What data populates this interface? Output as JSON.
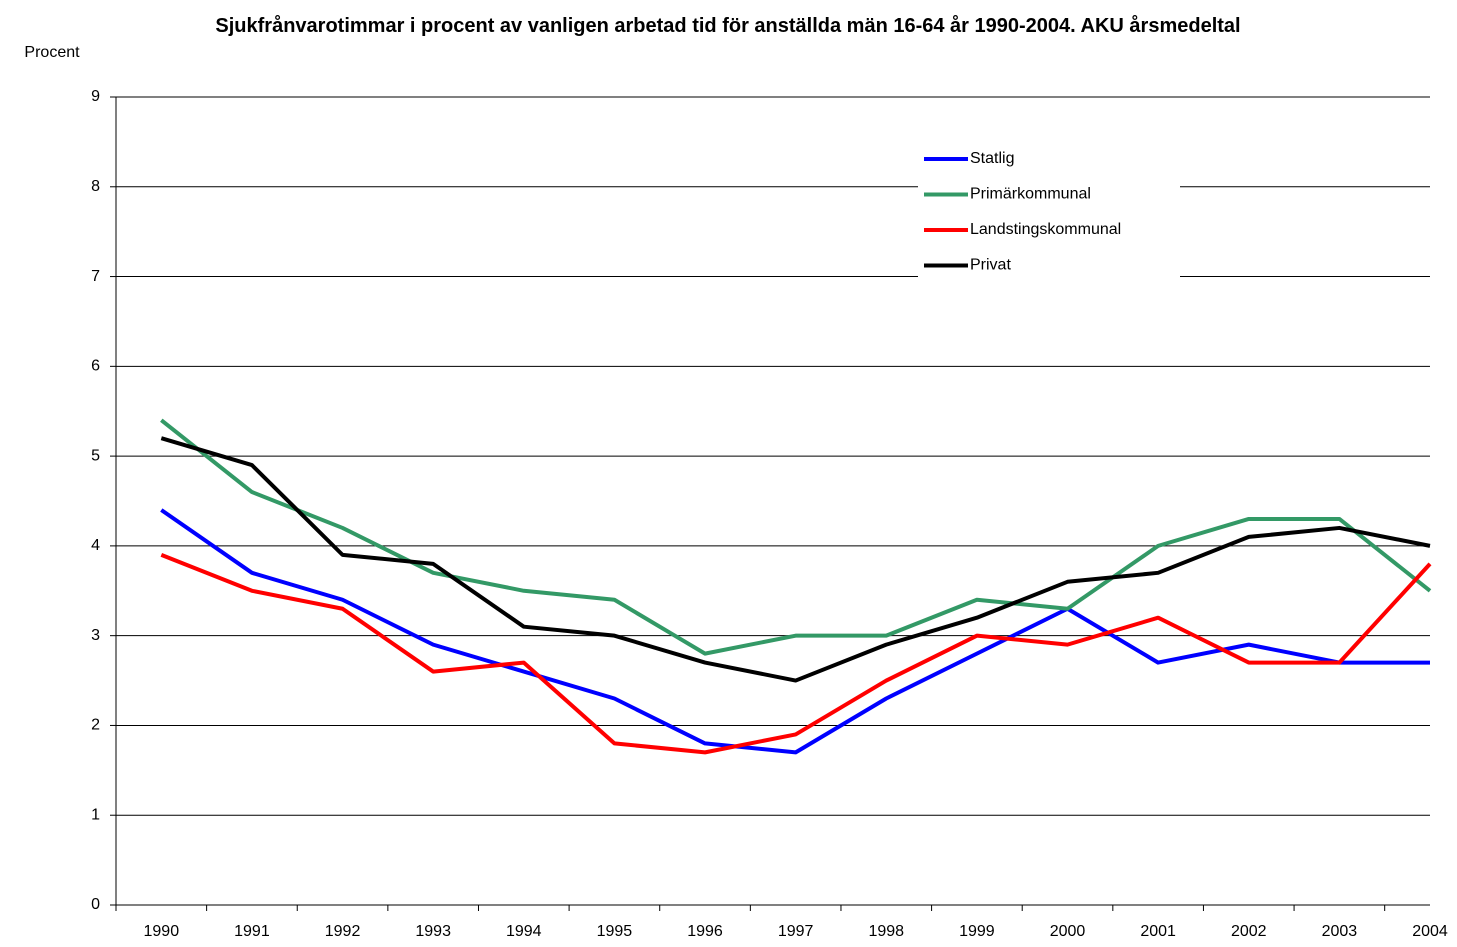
{
  "chart_data": {
    "type": "line",
    "title": "Sjukfrånvarotimmar i procent av vanligen arbetad tid för anställda män 16-64 år 1990-2004. AKU årsmedeltal",
    "y_label": "Procent",
    "categories": [
      "1990",
      "1991",
      "1992",
      "1993",
      "1994",
      "1995",
      "1996",
      "1997",
      "1998",
      "1999",
      "2000",
      "2001",
      "2002",
      "2003",
      "2004"
    ],
    "series": [
      {
        "name": "Statlig",
        "color": "#0000ff",
        "values": [
          4.4,
          3.7,
          3.4,
          2.9,
          2.6,
          2.3,
          1.8,
          1.7,
          2.3,
          2.8,
          3.3,
          2.7,
          2.9,
          2.7,
          2.7
        ]
      },
      {
        "name": "Primärkommunal",
        "color": "#339966",
        "values": [
          5.4,
          4.6,
          4.2,
          3.7,
          3.5,
          3.4,
          2.8,
          3.0,
          3.0,
          3.4,
          3.3,
          4.0,
          4.3,
          4.3,
          3.5
        ]
      },
      {
        "name": "Landstingskommunal",
        "color": "#ff0000",
        "values": [
          3.9,
          3.5,
          3.3,
          2.6,
          2.7,
          1.8,
          1.7,
          1.9,
          2.5,
          3.0,
          2.9,
          3.2,
          2.7,
          2.7,
          3.8
        ]
      },
      {
        "name": "Privat",
        "color": "#000000",
        "values": [
          5.2,
          4.9,
          3.9,
          3.8,
          3.1,
          3.0,
          2.7,
          2.5,
          2.9,
          3.2,
          3.6,
          3.7,
          4.1,
          4.2,
          4.0
        ]
      }
    ],
    "ylim": [
      0,
      9
    ],
    "yticks": [
      0,
      1,
      2,
      3,
      4,
      5,
      6,
      7,
      8,
      9
    ],
    "grid": true,
    "legend": "upper right"
  }
}
